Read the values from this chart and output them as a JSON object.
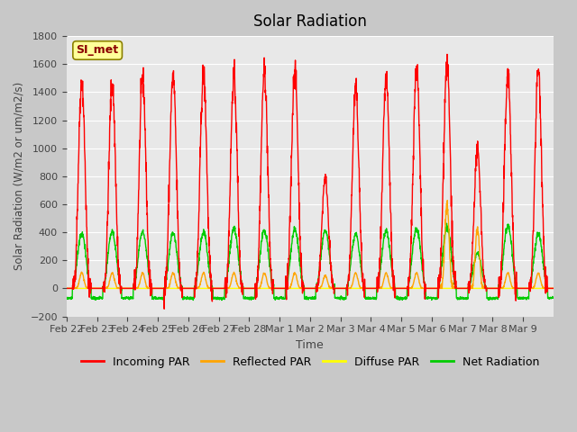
{
  "title": "Solar Radiation",
  "ylabel": "Solar Radiation (W/m2 or um/m2/s)",
  "xlabel": "Time",
  "ylim": [
    -200,
    1800
  ],
  "yticks": [
    -200,
    0,
    200,
    400,
    600,
    800,
    1000,
    1200,
    1400,
    1600,
    1800
  ],
  "xtick_labels": [
    "Feb 22",
    "Feb 23",
    "Feb 24",
    "Feb 25",
    "Feb 26",
    "Feb 27",
    "Feb 28",
    "Mar 1",
    "Mar 2",
    "Mar 3",
    "Mar 4",
    "Mar 5",
    "Mar 6",
    "Mar 7",
    "Mar 8",
    "Mar 9"
  ],
  "annotation_text": "SI_met",
  "annotation_color": "#8B0000",
  "annotation_bg": "#FFFF99",
  "bg_color": "#C8C8C8",
  "plot_bg": "#E8E8E8",
  "colors": {
    "incoming": "#FF0000",
    "reflected": "#FFA500",
    "diffuse": "#FFFF00",
    "net": "#00CC00"
  },
  "legend_labels": [
    "Incoming PAR",
    "Reflected PAR",
    "Diffuse PAR",
    "Net Radiation"
  ],
  "num_days": 16,
  "peaks_incoming": [
    1480,
    1460,
    1500,
    1510,
    1530,
    1510,
    1550,
    1560,
    790,
    1420,
    1490,
    1580,
    1600,
    980,
    1530,
    1560
  ],
  "peaks_reflected": [
    110,
    110,
    110,
    110,
    110,
    110,
    110,
    110,
    90,
    110,
    110,
    110,
    600,
    430,
    110,
    110
  ],
  "peaks_net": [
    390,
    400,
    410,
    390,
    400,
    425,
    415,
    420,
    415,
    390,
    410,
    430,
    440,
    250,
    450,
    390
  ],
  "night_net": -70,
  "lw": 1.0
}
